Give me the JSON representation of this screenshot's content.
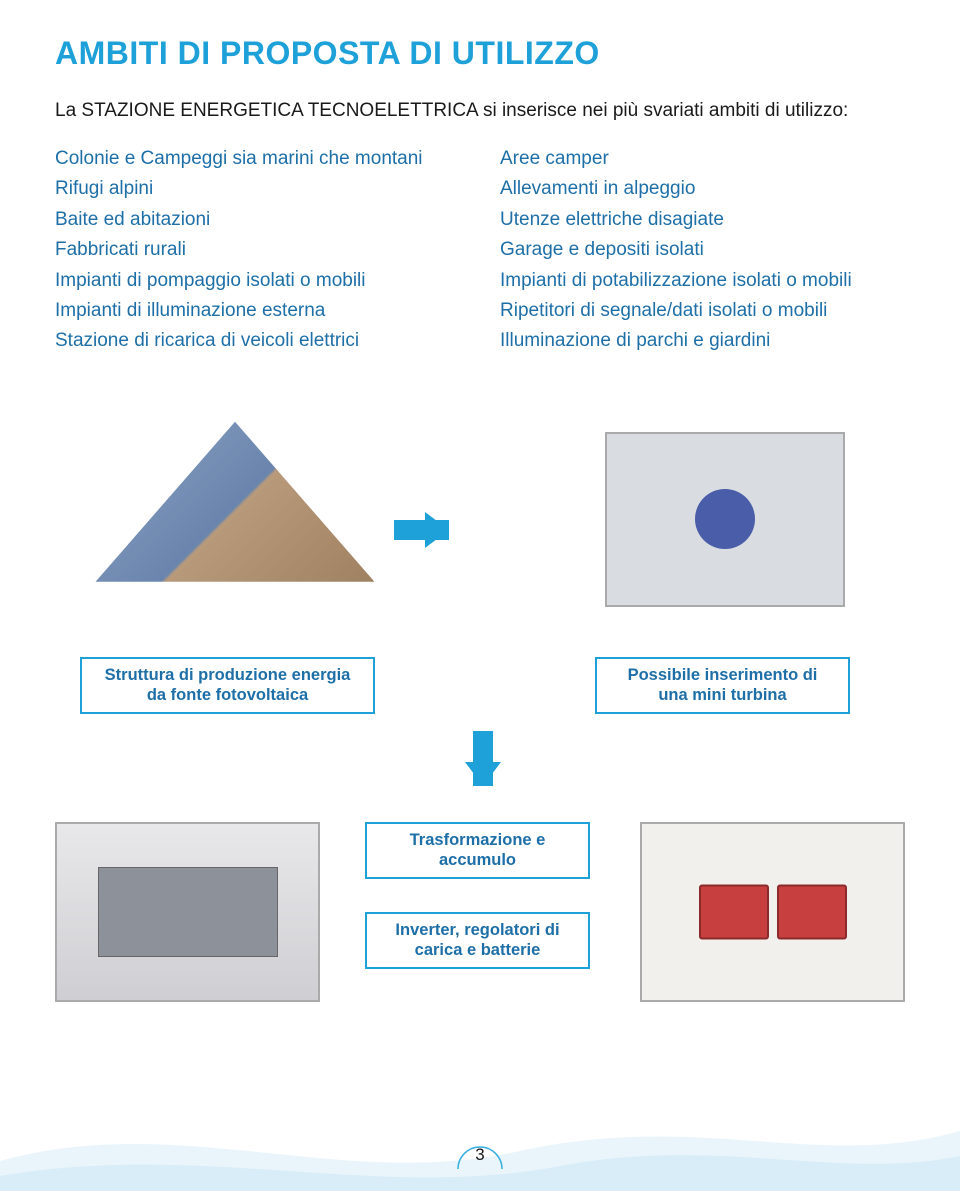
{
  "colors": {
    "title": "#1ea0d9",
    "body_text": "#1a1a1a",
    "list_text": "#1e6fa8",
    "box_border": "#1ea0d9",
    "box_text": "#1e6fa8",
    "arrow": "#1ea0d9",
    "page_ring": "#36b0e0",
    "wave": "#dbeef8"
  },
  "title": "AMBITI DI PROPOSTA DI UTILIZZO",
  "intro": "La STAZIONE ENERGETICA TECNOELETTRICA si inserisce nei più svariati ambiti di utilizzo:",
  "left_items": [
    "Colonie e Campeggi sia marini che montani",
    "Rifugi alpini",
    "Baite ed abitazioni",
    "Fabbricati rurali",
    "Impianti di pompaggio isolati o mobili",
    "Impianti di illuminazione esterna",
    "Stazione di ricarica di veicoli elettrici"
  ],
  "right_items": [
    "Aree camper",
    "Allevamenti in alpeggio",
    "Utenze elettriche disagiate",
    "Garage e depositi isolati",
    "Impianti di potabilizzazione isolati o mobili",
    "Ripetitori di segnale/dati isolati o mobili",
    "Illuminazione di parchi e giardini"
  ],
  "labels": {
    "roof": "Struttura di produzione energia da fonte fotovoltaica",
    "turbine": "Possibile inserimento di una mini turbina",
    "trasformazione": "Trasformazione e accumulo",
    "inverter": "Inverter, regolatori di carica e batterie"
  },
  "page_number": "3"
}
